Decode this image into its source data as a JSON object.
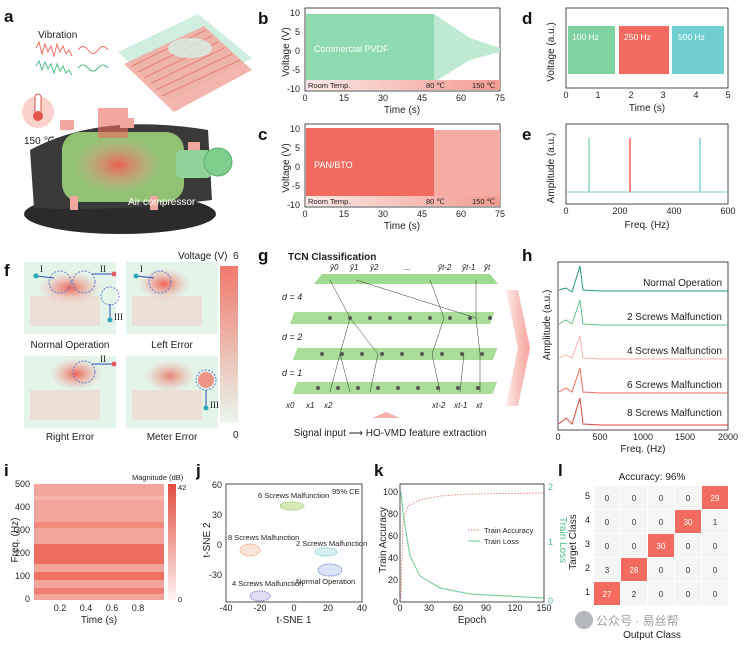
{
  "panel_letters": [
    "a",
    "b",
    "c",
    "d",
    "e",
    "f",
    "g",
    "h",
    "i",
    "j",
    "k",
    "l"
  ],
  "colors": {
    "green": "#7fd3a0",
    "green_light": "#cdeedc",
    "red": "#f26b5e",
    "red_light": "#f8b7ae",
    "cyan": "#6fcfcf",
    "teal": "#2aa38d"
  },
  "panel_a": {
    "vibration": "Vibration",
    "temp": "150 ℃",
    "air": "Air compressor"
  },
  "panel_b": {
    "series": "Commercial PVDF",
    "ylabel": "Voltage (V)",
    "xlabel": "Time (s)",
    "yticks": [
      "10",
      "5",
      "0",
      "-5",
      "-10"
    ],
    "xticks": [
      "0",
      "15",
      "30",
      "45",
      "60",
      "75"
    ],
    "room": "Room Temp.",
    "t80": "80 ℃",
    "t150": "150 ℃"
  },
  "panel_c": {
    "series": "PAN/BTO",
    "ylabel": "Voltage (V)",
    "xlabel": "Time (s)",
    "yticks": [
      "10",
      "5",
      "0",
      "-5",
      "-10"
    ],
    "xticks": [
      "0",
      "15",
      "30",
      "45",
      "60",
      "75"
    ],
    "room": "Room Temp.",
    "t80": "80 ℃",
    "t150": "150 ℃"
  },
  "panel_d": {
    "ylabel": "Voltage (a.u.)",
    "xlabel": "Time (s)",
    "xticks": [
      "0",
      "1",
      "2",
      "3",
      "4",
      "5"
    ],
    "f1": "100 Hz",
    "f2": "250 Hz",
    "f3": "500 Hz"
  },
  "panel_e": {
    "ylabel": "Amplitude (a.u.)",
    "xlabel": "Freq. (Hz)",
    "xticks": [
      "0",
      "200",
      "400",
      "600"
    ]
  },
  "panel_f": {
    "title": "Voltage (V)",
    "cmax": "6",
    "cmin": "0",
    "s1": "Normal Operation",
    "s2": "Left Error",
    "s3": "Right Error",
    "s4": "Meter Error",
    "m1": "I",
    "m2": "II",
    "m3": "III"
  },
  "panel_g": {
    "title": "TCN Classification",
    "d4": "d = 4",
    "d2": "d = 2",
    "d1": "d = 1",
    "bottom": "Signal input ⟶ HO-VMD feature extraction",
    "yhat": [
      "ŷ0",
      "ŷ1",
      "ŷ2",
      "...",
      "ŷt-2",
      "ŷt-1",
      "ŷt"
    ],
    "xs": [
      "x0",
      "x1",
      "x2",
      "xt-2",
      "xt-1",
      "xt"
    ]
  },
  "panel_h": {
    "ylabel": "Amplitude (a.u.)",
    "xlabel": "Freq. (Hz)",
    "xticks": [
      "0",
      "500",
      "1000",
      "1500",
      "2000"
    ],
    "labels": [
      "Normal Operation",
      "2 Screws Malfunction",
      "4 Screws Malfunction",
      "6 Screws Malfunction",
      "8 Screws Malfunction"
    ]
  },
  "panel_i": {
    "ylabel": "Freq. (Hz)",
    "xlabel": "Time (s)",
    "yticks": [
      "500",
      "400",
      "300",
      "200",
      "100",
      "0"
    ],
    "xticks": [
      "0.2",
      "0.4",
      "0.6",
      "0.8"
    ],
    "cbar": "Magnitude (dB)",
    "cmax": "42",
    "cmin": "0"
  },
  "panel_j": {
    "ylabel": "t-SNE 2",
    "xlabel": "t-SNE 1",
    "yticks": [
      "60",
      "30",
      "0",
      "-30"
    ],
    "xticks": [
      "-40",
      "-20",
      "0",
      "20",
      "40"
    ],
    "ce": "95% CE",
    "c6": "6 Screws Malfunction",
    "c8": "8 Screws Malfunction",
    "c2": "2 Screws Malfunction",
    "c4": "4 Screws Malfunction",
    "cn": "Normal Operation"
  },
  "panel_k": {
    "ylabel": "Train Accuracy",
    "ylabel2": "Train Loss",
    "xlabel": "Epoch",
    "yticks": [
      "100",
      "80",
      "60",
      "40",
      "20",
      "0"
    ],
    "y2ticks": [
      "2",
      "1",
      "0"
    ],
    "xticks": [
      "0",
      "30",
      "60",
      "90",
      "120",
      "150"
    ],
    "leg1": "Train Accuracy",
    "leg2": "Train Loss"
  },
  "panel_l": {
    "title": "Accuracy: 96%",
    "ylabel": "Target Class",
    "xlabel": "Output Class",
    "rows": [
      "5",
      "4",
      "3",
      "2",
      "1"
    ],
    "matrix": [
      [
        0,
        0,
        0,
        0,
        29
      ],
      [
        0,
        0,
        0,
        30,
        1
      ],
      [
        0,
        0,
        30,
        0,
        0
      ],
      [
        3,
        28,
        0,
        0,
        0
      ],
      [
        27,
        2,
        0,
        0,
        0
      ]
    ]
  },
  "watermark": "公众号 · 易丝帮"
}
